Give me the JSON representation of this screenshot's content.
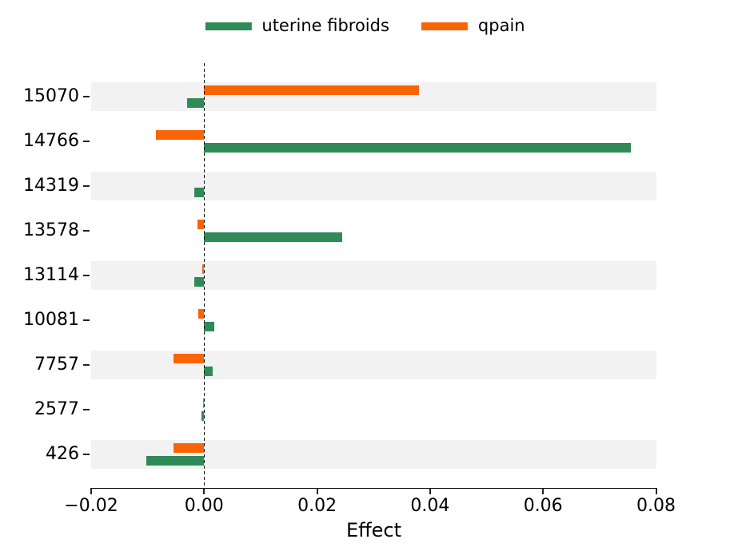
{
  "chart_data": {
    "type": "bar",
    "orientation": "horizontal",
    "title": "",
    "xlabel": "Effect",
    "categories": [
      "15070",
      "14766",
      "14319",
      "13578",
      "13114",
      "10081",
      "7757",
      "2577",
      "426"
    ],
    "series": [
      {
        "name": "uterine fibroids",
        "color": "#2e8b57",
        "values": [
          -0.003,
          0.0755,
          -0.0017,
          0.0245,
          -0.0017,
          0.0018,
          0.0015,
          -0.0004,
          -0.0102
        ]
      },
      {
        "name": "qpain",
        "color": "#fa6405",
        "values": [
          0.038,
          -0.0086,
          0.0,
          -0.0012,
          -0.0003,
          -0.0011,
          -0.0054,
          -0.0002,
          -0.0054
        ]
      }
    ],
    "xlim": [
      -0.02,
      0.08
    ],
    "xtick_values": [
      -0.02,
      0.0,
      0.02,
      0.04,
      0.06,
      0.08
    ],
    "xtick_labels": [
      "−0.02",
      "0.00",
      "0.02",
      "0.04",
      "0.06",
      "0.08"
    ],
    "legend_position": "top",
    "zero_line_style": "dashed",
    "row_stripe_color": "#f2f2f2",
    "grid": false
  }
}
